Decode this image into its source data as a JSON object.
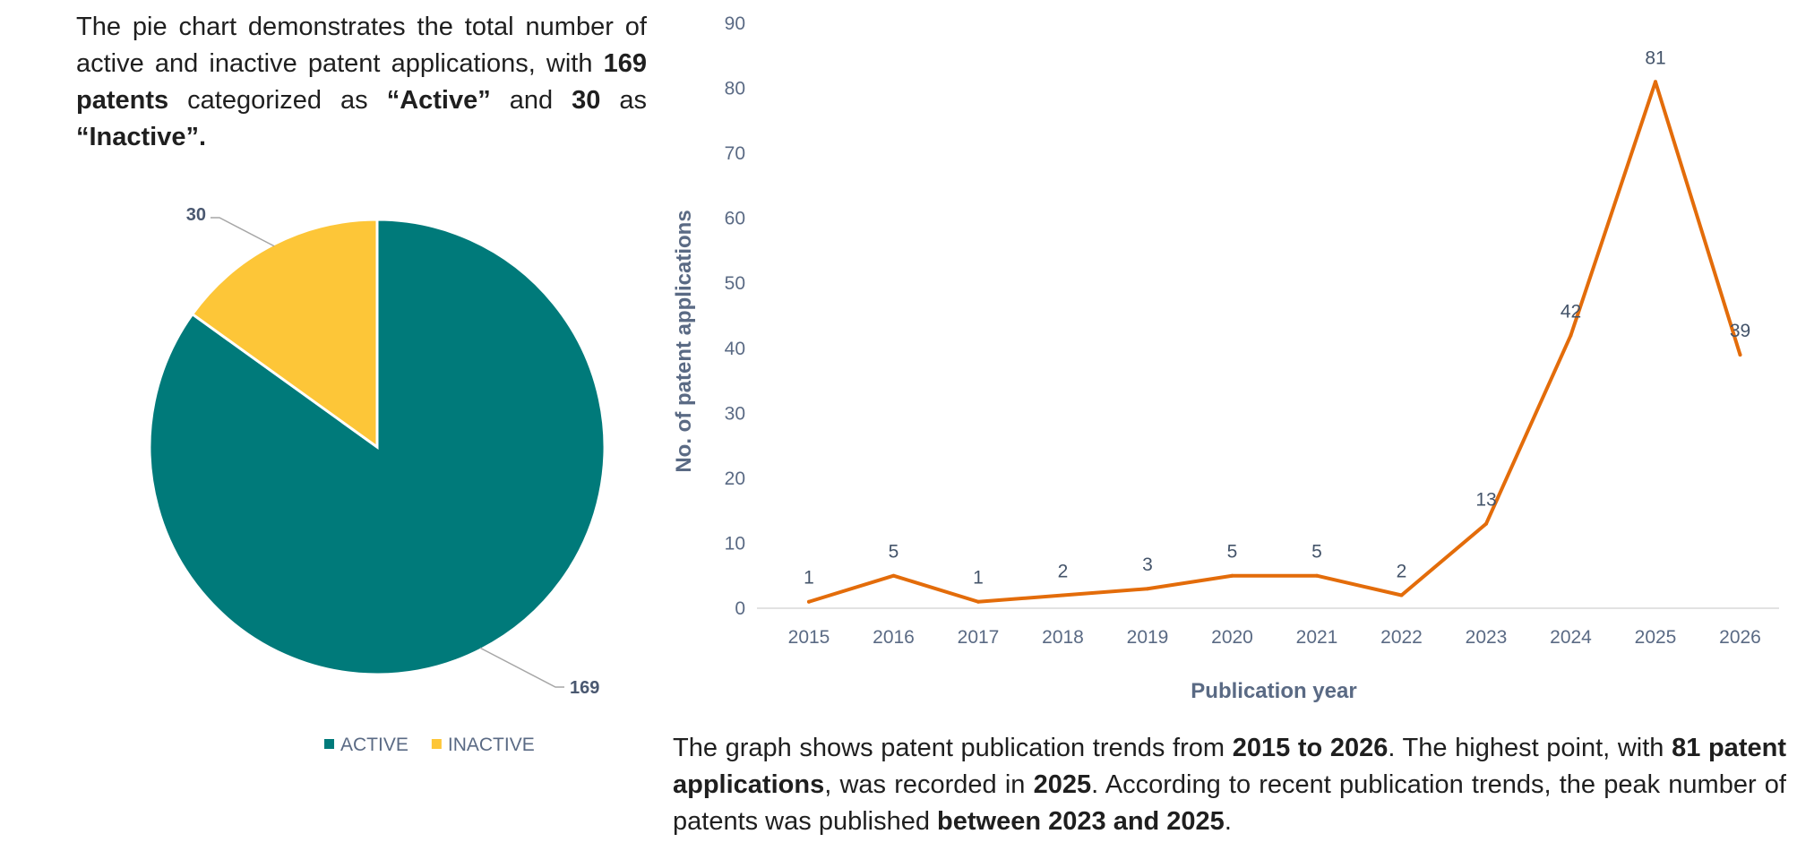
{
  "pie_description": {
    "t1": "The pie chart demonstrates the total number of active and inactive patent applications, with ",
    "b1": "169 patents",
    "t2": " categorized as ",
    "b2": "“Active”",
    "t3": " and ",
    "b3": "30",
    "t4": " as ",
    "b4": "“Inactive”."
  },
  "line_description": {
    "t1": "The graph shows patent publication trends from ",
    "b1": "2015 to 2026",
    "t2": ". The highest point, with ",
    "b2": "81 patent applications",
    "t3": ", was recorded in ",
    "b3": "2025",
    "t4": ". According to recent publication trends, the peak number of patents was published ",
    "b4": "between 2023 and 2025",
    "t5": "."
  },
  "chart_data": [
    {
      "type": "pie",
      "slices": [
        {
          "label": "ACTIVE",
          "value": 169,
          "color": "#007A7A"
        },
        {
          "label": "INACTIVE",
          "value": 30,
          "color": "#FDC638"
        }
      ],
      "legend": {
        "position": "bottom",
        "entries": [
          "ACTIVE",
          "INACTIVE"
        ]
      },
      "data_labels": [
        "169",
        "30"
      ]
    },
    {
      "type": "line",
      "x": [
        2015,
        2016,
        2017,
        2018,
        2019,
        2020,
        2021,
        2022,
        2023,
        2024,
        2025,
        2026
      ],
      "x_tick_labels": [
        "2015",
        "2016",
        "2017",
        "2018",
        "2019",
        "2020",
        "2021",
        "2022",
        "2023",
        "2024",
        "2025",
        "2026"
      ],
      "series": [
        {
          "values": [
            1,
            5,
            1,
            2,
            3,
            5,
            5,
            2,
            13,
            42,
            81,
            39
          ],
          "color": "#E36C0A"
        }
      ],
      "xlabel": "Publication year",
      "ylabel": "No. of patent applications",
      "ylim": [
        0,
        90
      ],
      "y_ticks": [
        0,
        10,
        20,
        30,
        40,
        50,
        60,
        70,
        80,
        90
      ],
      "grid": false,
      "data_labels": true
    }
  ]
}
